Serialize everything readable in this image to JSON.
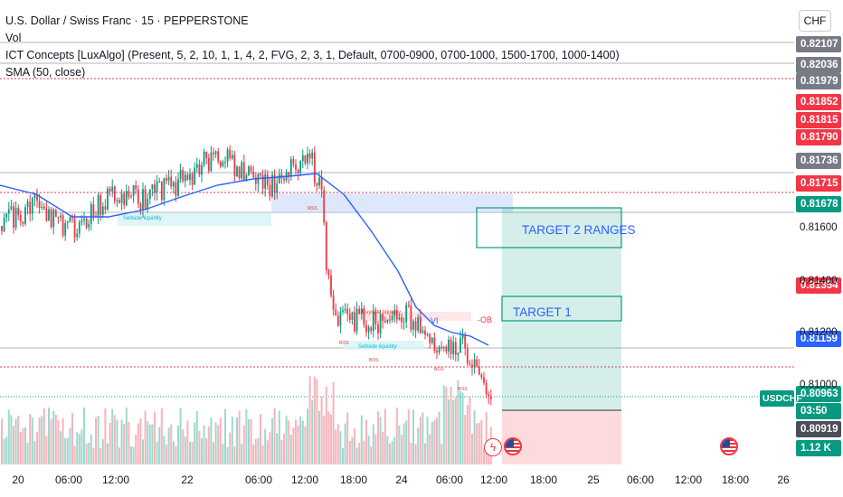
{
  "legend": {
    "title": "U.S. Dollar / Swiss Franc · 15 · PEPPERSTONE",
    "vol": "Vol",
    "ict": "ICT Concepts [LuxAlgo] (Present, 5, 2, 10, 1, 1, 4, 2, FVG, 2, 3, 1, Default, 0700-0900, 0700-1000, 1500-1700, 1000-1400)",
    "sma": "SMA (50, close)"
  },
  "currency": "CHF",
  "price_axis": {
    "tags": [
      {
        "text": "0.82107",
        "color": "#787b86"
      },
      {
        "text": "0.82036",
        "color": "#787b86"
      },
      {
        "text": "0.81979",
        "color": "#787b86"
      },
      {
        "text": "0.81852",
        "color": "#f23645"
      },
      {
        "text": "0.81815",
        "color": "#f23645"
      },
      {
        "text": "0.81790",
        "color": "#f23645"
      },
      {
        "text": "0.81736",
        "color": "#787b86"
      },
      {
        "text": "0.81715",
        "color": "#f23645"
      },
      {
        "text": "0.81678",
        "color": "#089981"
      },
      {
        "text": "0.81354",
        "color": "#f23645"
      },
      {
        "text": "0.81159",
        "color": "#2962ff"
      },
      {
        "text": "0.80963",
        "color": "#089981"
      },
      {
        "text": "03:50",
        "color": "#089981"
      },
      {
        "text": "0.80919",
        "color": "#4a4e58"
      },
      {
        "text": "1.12 K",
        "color": "#089981"
      }
    ],
    "plain": [
      "0.81600",
      "0.81400",
      "0.81200",
      "0.81000"
    ],
    "symbol": "USDCHF"
  },
  "time_axis": [
    "20",
    "06:00",
    "12:00",
    "22",
    "06:00",
    "12:00",
    "18:00",
    "24",
    "06:00",
    "12:00",
    "18:00",
    "25",
    "06:00",
    "12:00",
    "18:00",
    "26"
  ],
  "annotations": {
    "target2": "TARGET 2 RANGES",
    "target1": "TARGET 1",
    "mss": "MSS",
    "ob": "-OB",
    "bos": "BOS",
    "vi": "VI",
    "bl1": "Sellside liquidity",
    "bl2": "Buyside liquidity",
    "bl3": "Sellside liquidity"
  },
  "chart_data": {
    "type": "candlestick",
    "symbol": "USDCHF",
    "interval": "15",
    "price_range": [
      0.8078,
      0.8216
    ],
    "last_price": 0.80963,
    "sma_length": 50
  },
  "colors": {
    "up": "#089981",
    "down": "#f23645",
    "sma": "#2962ff"
  }
}
